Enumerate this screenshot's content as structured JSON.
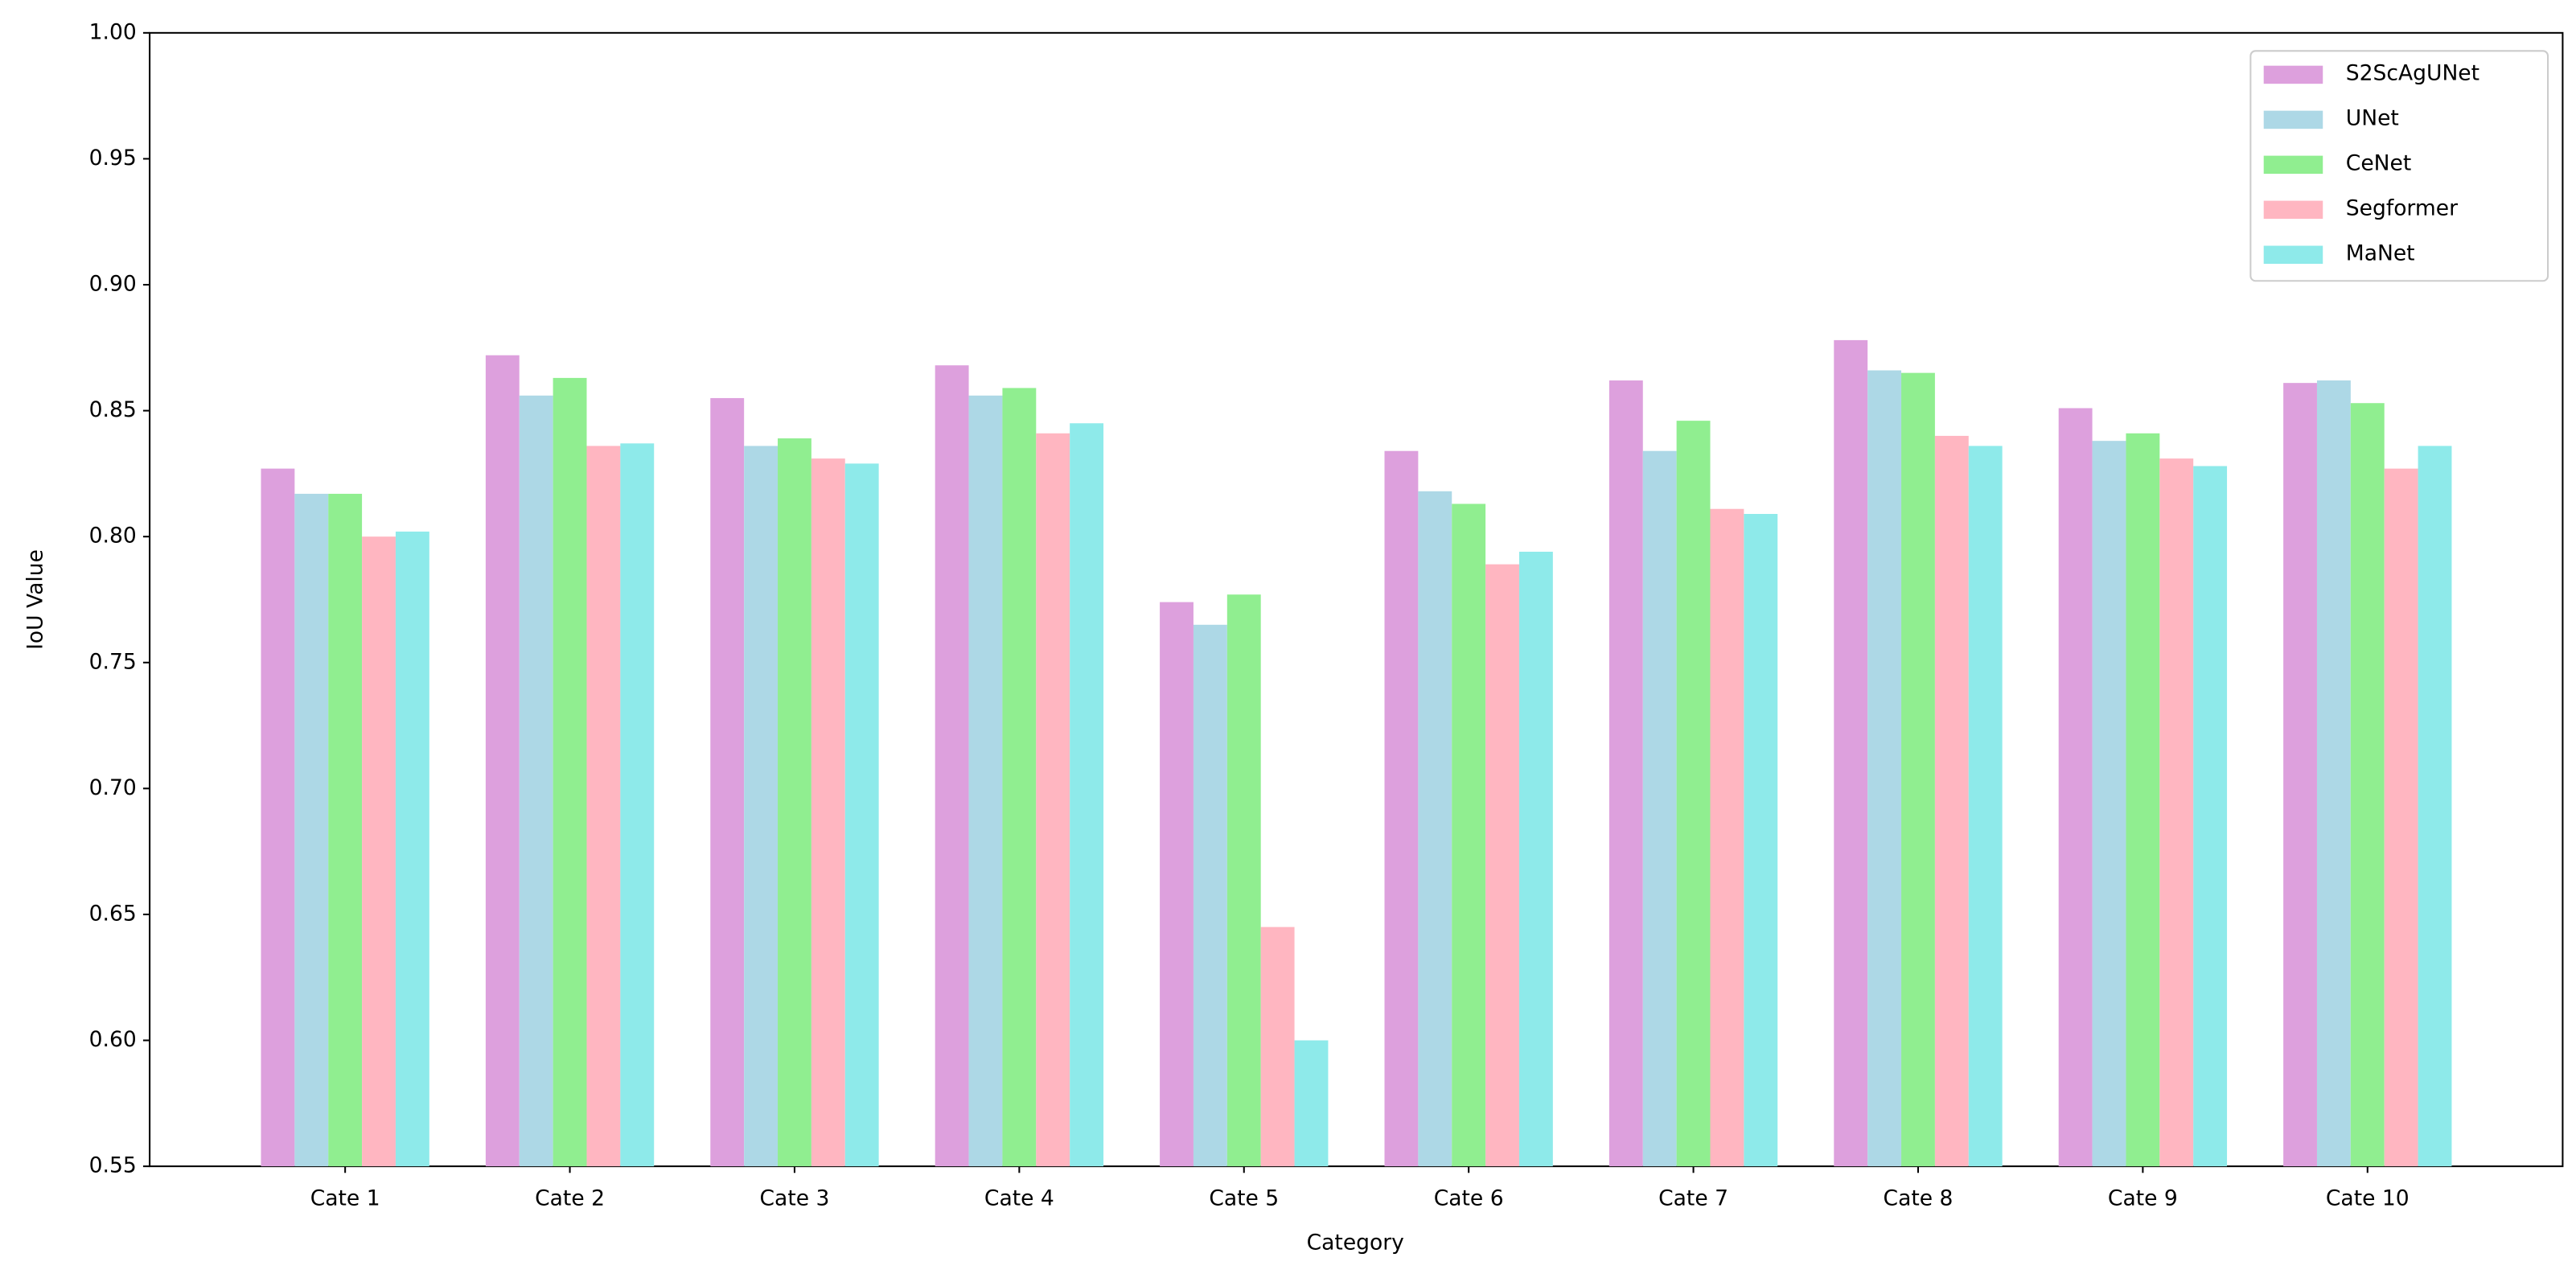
{
  "chart_data": {
    "type": "bar",
    "x_label": "Category",
    "y_label": "IoU Value",
    "categories": [
      "Cate 1",
      "Cate 2",
      "Cate 3",
      "Cate 4",
      "Cate 5",
      "Cate 6",
      "Cate 7",
      "Cate 8",
      "Cate 9",
      "Cate 10"
    ],
    "series": [
      {
        "name": "S2ScAgUNet",
        "color": "#dda0dd",
        "values": [
          0.827,
          0.872,
          0.855,
          0.868,
          0.774,
          0.834,
          0.862,
          0.878,
          0.851,
          0.861
        ]
      },
      {
        "name": "UNet",
        "color": "#add8e6",
        "values": [
          0.817,
          0.856,
          0.836,
          0.856,
          0.765,
          0.818,
          0.834,
          0.866,
          0.838,
          0.862
        ]
      },
      {
        "name": "CeNet",
        "color": "#90ee90",
        "values": [
          0.817,
          0.863,
          0.839,
          0.859,
          0.777,
          0.813,
          0.846,
          0.865,
          0.841,
          0.853
        ]
      },
      {
        "name": "Segformer",
        "color": "#ffb6c1",
        "values": [
          0.8,
          0.836,
          0.831,
          0.841,
          0.645,
          0.789,
          0.811,
          0.84,
          0.831,
          0.827
        ]
      },
      {
        "name": "MaNet",
        "color": "#8eeaea",
        "values": [
          0.802,
          0.837,
          0.829,
          0.845,
          0.6,
          0.794,
          0.809,
          0.836,
          0.828,
          0.836
        ]
      }
    ],
    "ylim": [
      0.55,
      1.0
    ],
    "yticks": [
      0.55,
      {
        "value": 0.6,
        "label": "0.60"
      },
      0.65,
      {
        "value": 0.7,
        "label": "0.70"
      },
      0.75,
      {
        "value": 0.8,
        "label": "0.80"
      },
      0.85,
      {
        "value": 0.9,
        "label": "0.90"
      },
      0.95,
      {
        "value": 1.0,
        "label": "1.00"
      }
    ],
    "legend": "upper right"
  }
}
